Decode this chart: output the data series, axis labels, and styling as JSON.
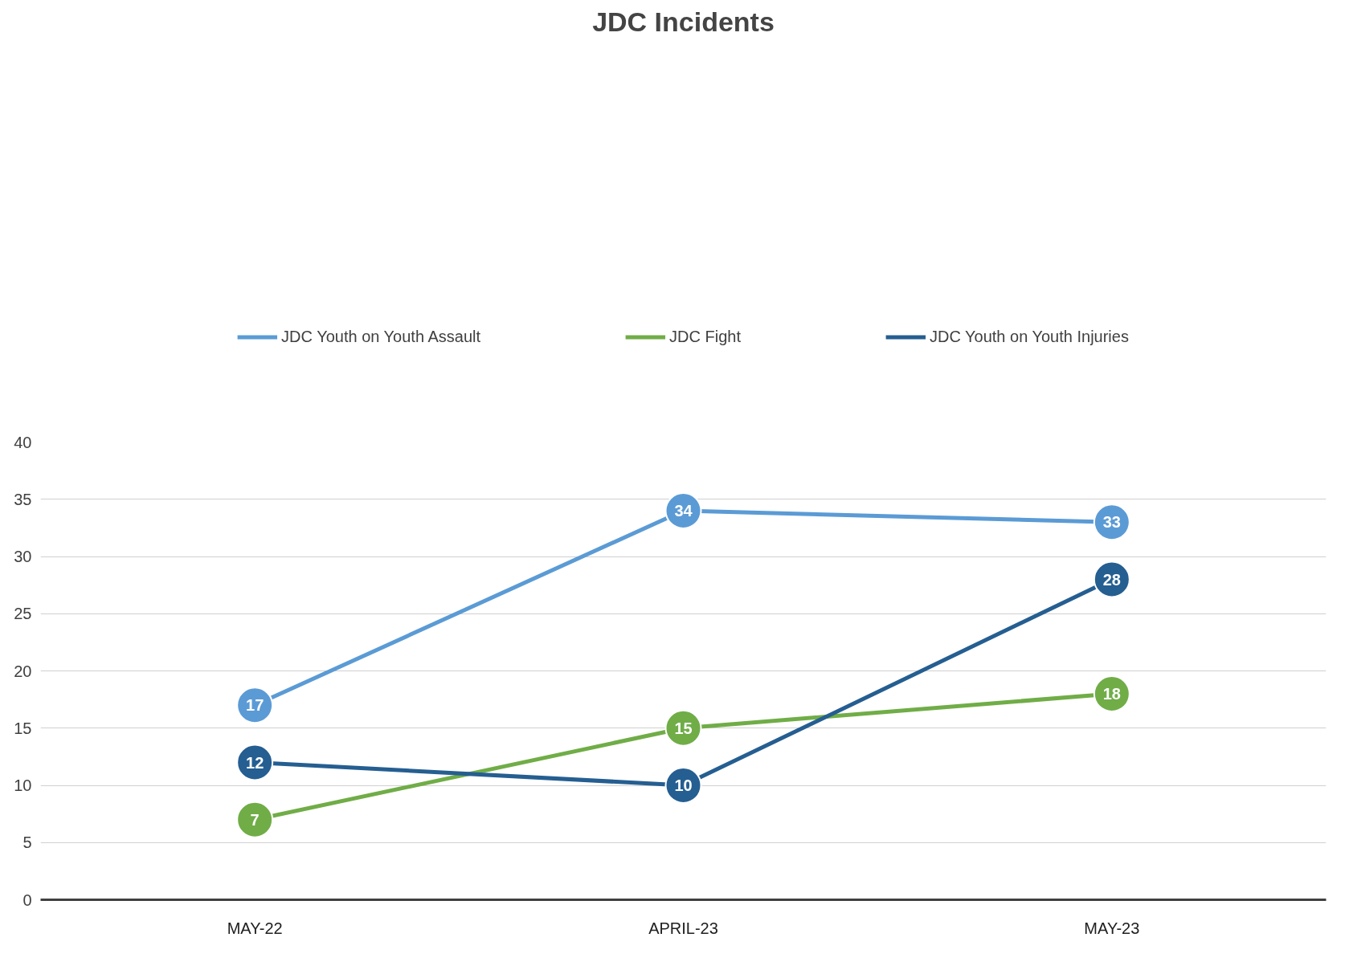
{
  "chart_data": {
    "type": "line",
    "title": "JDC Incidents",
    "categories": [
      "MAY-22",
      "APRIL-23",
      "MAY-23"
    ],
    "series": [
      {
        "name": "JDC Youth on Youth Assault",
        "color": "#5b9bd5",
        "values": [
          17,
          34,
          33
        ]
      },
      {
        "name": "JDC Fight",
        "color": "#70ad47",
        "values": [
          7,
          15,
          18
        ]
      },
      {
        "name": "JDC Youth on Youth Injuries",
        "color": "#255e91",
        "values": [
          12,
          10,
          28
        ]
      }
    ],
    "ylim": [
      0,
      40
    ],
    "yticks": [
      0,
      5,
      10,
      15,
      20,
      25,
      30,
      35,
      40
    ],
    "grid": "y",
    "legend": "top",
    "marker": "circle",
    "line_style": "solid",
    "data_labels": true
  }
}
